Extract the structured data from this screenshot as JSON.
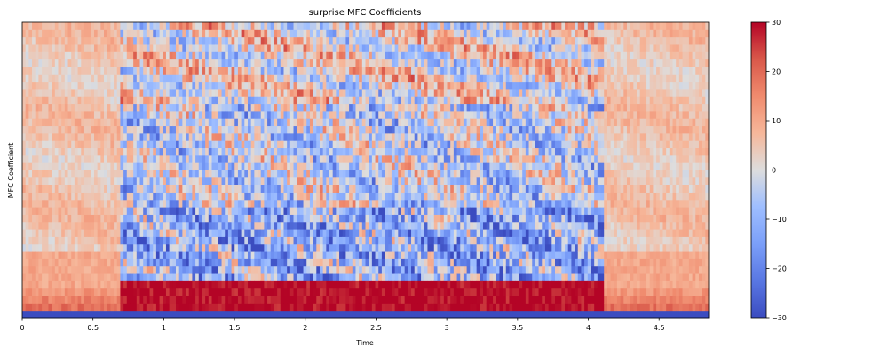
{
  "chart_data": {
    "type": "heatmap",
    "title": "surprise MFC Coefficients",
    "xlabel": "Time",
    "ylabel": "MFC Coefficient",
    "xlim": [
      0,
      4.85
    ],
    "x_ticks": [
      0,
      0.5,
      1,
      1.5,
      2,
      2.5,
      3,
      3.5,
      4,
      4.5
    ],
    "x_tick_labels": [
      "0",
      "0.5",
      "1",
      "1.5",
      "2",
      "2.5",
      "3",
      "3.5",
      "4",
      "4.5"
    ],
    "n_coefficients": 40,
    "colorbar": {
      "colormap": "coolwarm",
      "range": [
        -30,
        30
      ],
      "ticks": [
        30,
        20,
        10,
        0,
        -10,
        -20,
        -30
      ],
      "tick_labels": [
        "30",
        "20",
        "10",
        "0",
        "−10",
        "−20",
        "−30"
      ]
    },
    "approx_time_segments": [
      {
        "x0": 0.0,
        "x1": 0.7,
        "description": "silence: near 0, warm near low coefficients"
      },
      {
        "x0": 0.7,
        "x1": 4.1,
        "description": "speech: strong positive low coefficients, mixed negative mid coefficients"
      },
      {
        "x0": 4.1,
        "x1": 4.85,
        "description": "silence: near 0 to mildly positive"
      }
    ],
    "coefficient_0_value": -30
  }
}
